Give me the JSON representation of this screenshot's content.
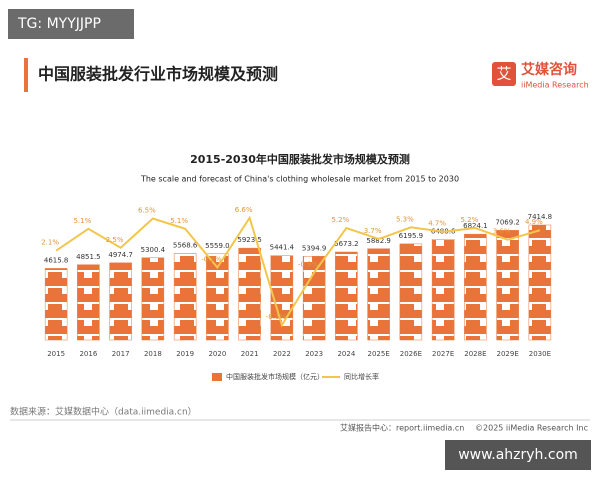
{
  "watermark_top": "TG: MYYJJPP",
  "header": {
    "title": "中国服装批发行业市场规模及预测",
    "logo_mark": "艾",
    "logo_cn": "艾媒咨询",
    "logo_en": "iiMedia Research"
  },
  "chart_data": {
    "type": "bar",
    "title": "2015-2030年中国服装批发市场规模及预测",
    "subtitle": "The scale and forecast of China's clothing wholesale market from 2015 to 2030",
    "categories": [
      "2015",
      "2016",
      "2017",
      "2018",
      "2019",
      "2020",
      "2021",
      "2022",
      "2023",
      "2024",
      "2025E",
      "2026E",
      "2027E",
      "2028E",
      "2029E",
      "2030E"
    ],
    "series": [
      {
        "name": "中国服装批发市场规模（亿元）",
        "color": "#e9743a",
        "values": [
          4615.8,
          4851.5,
          4974.7,
          5300.4,
          5568.6,
          5559.0,
          5923.5,
          5441.4,
          5394.9,
          5673.2,
          5882.9,
          6195.9,
          6488.6,
          6824.1,
          7069.2,
          7414.8
        ],
        "value_labels": [
          "4615.8",
          "4851.5",
          "4974.7",
          "5300.4",
          "5568.6",
          "5559.0",
          "5923.5",
          "5441.4",
          "5394.9",
          "5673.2",
          "5882.9",
          "6195.9",
          "6488.6",
          "6824.1",
          "7069.2",
          "7414.8"
        ]
      },
      {
        "name": "同比增长率",
        "color": "#f3c64a",
        "type": "line",
        "axis": "y2",
        "values": [
          2.1,
          5.1,
          2.5,
          6.5,
          5.1,
          -0.2,
          6.6,
          -8.1,
          -0.9,
          5.2,
          3.7,
          5.3,
          4.7,
          5.2,
          3.6,
          4.9
        ],
        "value_labels": [
          "2.1%",
          "5.1%",
          "2.5%",
          "6.5%",
          "5.1%",
          "-0.2%",
          "6.6%",
          "-8.1%",
          "-0.9%",
          "5.2%",
          "3.7%",
          "5.3%",
          "4.7%",
          "5.2%",
          "3.6%",
          "4.9%"
        ]
      }
    ]
  },
  "source": "数据来源：艾媒数据中心（data.iimedia.cn）",
  "footer": {
    "left": "艾媒报告中心：report.iimedia.cn",
    "right": "©2025  iiMedia Research  Inc"
  },
  "watermark_bottom": "www.ahzryh.com"
}
